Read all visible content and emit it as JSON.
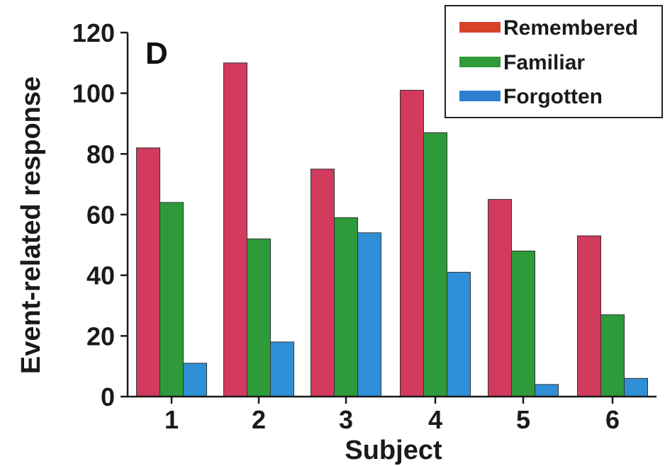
{
  "chart_data": {
    "type": "bar",
    "panel_label": "D",
    "xlabel": "Subject",
    "ylabel": "Event-related response",
    "categories": [
      "1",
      "2",
      "3",
      "4",
      "5",
      "6"
    ],
    "ylim": [
      0,
      120
    ],
    "yticks": [
      "0",
      "20",
      "40",
      "60",
      "80",
      "100",
      "120"
    ],
    "legend_position": "top-right",
    "grid": false,
    "series": [
      {
        "name": "Remembered",
        "color": "#d23a5e",
        "legend_color": "#d8442a",
        "values": [
          82,
          110,
          75,
          101,
          65,
          53
        ]
      },
      {
        "name": "Familiar",
        "color": "#2e9a3a",
        "legend_color": "#2e9a3a",
        "values": [
          64,
          52,
          59,
          87,
          48,
          27
        ]
      },
      {
        "name": "Forgotten",
        "color": "#2f8fd6",
        "legend_color": "#2f7fd0",
        "values": [
          11,
          18,
          54,
          41,
          4,
          6
        ]
      }
    ]
  }
}
